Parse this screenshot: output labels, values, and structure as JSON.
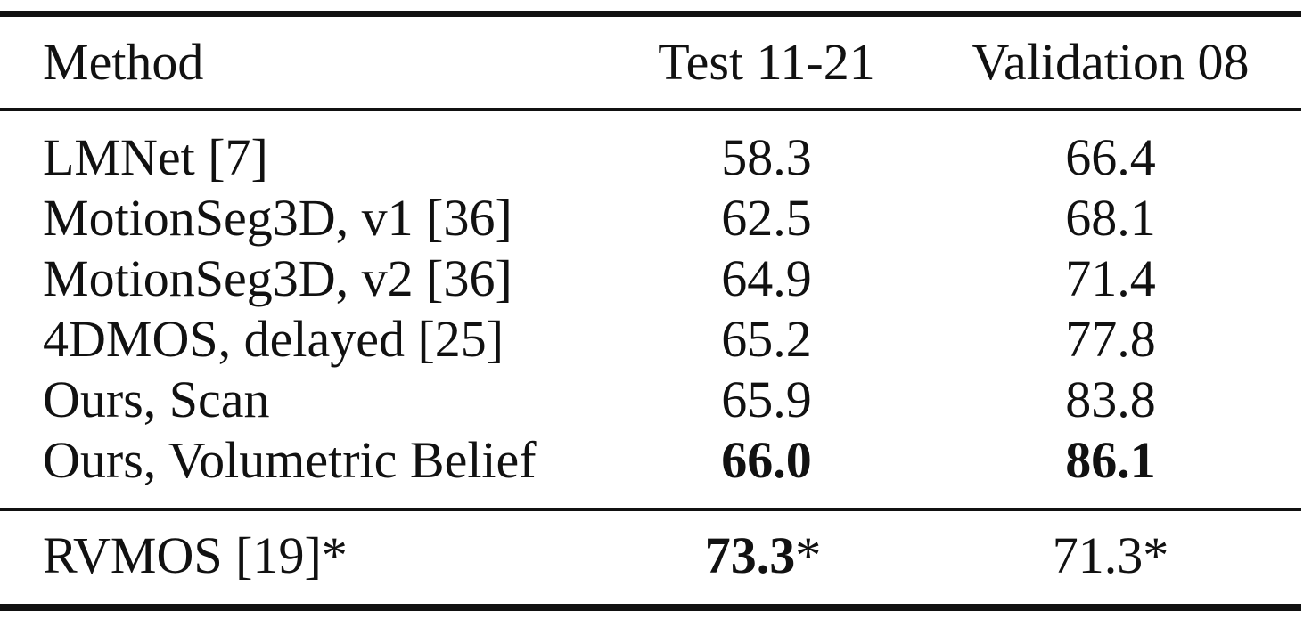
{
  "table": {
    "headers": {
      "method": "Method",
      "test": "Test 11-21",
      "validation": "Validation 08"
    },
    "rows": [
      {
        "method": "LMNet [7]",
        "test": "58.3",
        "validation": "66.4"
      },
      {
        "method": "MotionSeg3D, v1 [36]",
        "test": "62.5",
        "validation": "68.1"
      },
      {
        "method": "MotionSeg3D, v2 [36]",
        "test": "64.9",
        "validation": "71.4"
      },
      {
        "method": "4DMOS, delayed [25]",
        "test": "65.2",
        "validation": "77.8"
      },
      {
        "method": "Ours, Scan",
        "test": "65.9",
        "validation": "83.8"
      },
      {
        "method": "Ours, Volumetric Belief",
        "test": "66.0",
        "validation": "86.1"
      }
    ],
    "footer_row": {
      "method": "RVMOS [19]*",
      "test_value": "73.3",
      "test_mark": "*",
      "validation": "71.3*"
    }
  }
}
